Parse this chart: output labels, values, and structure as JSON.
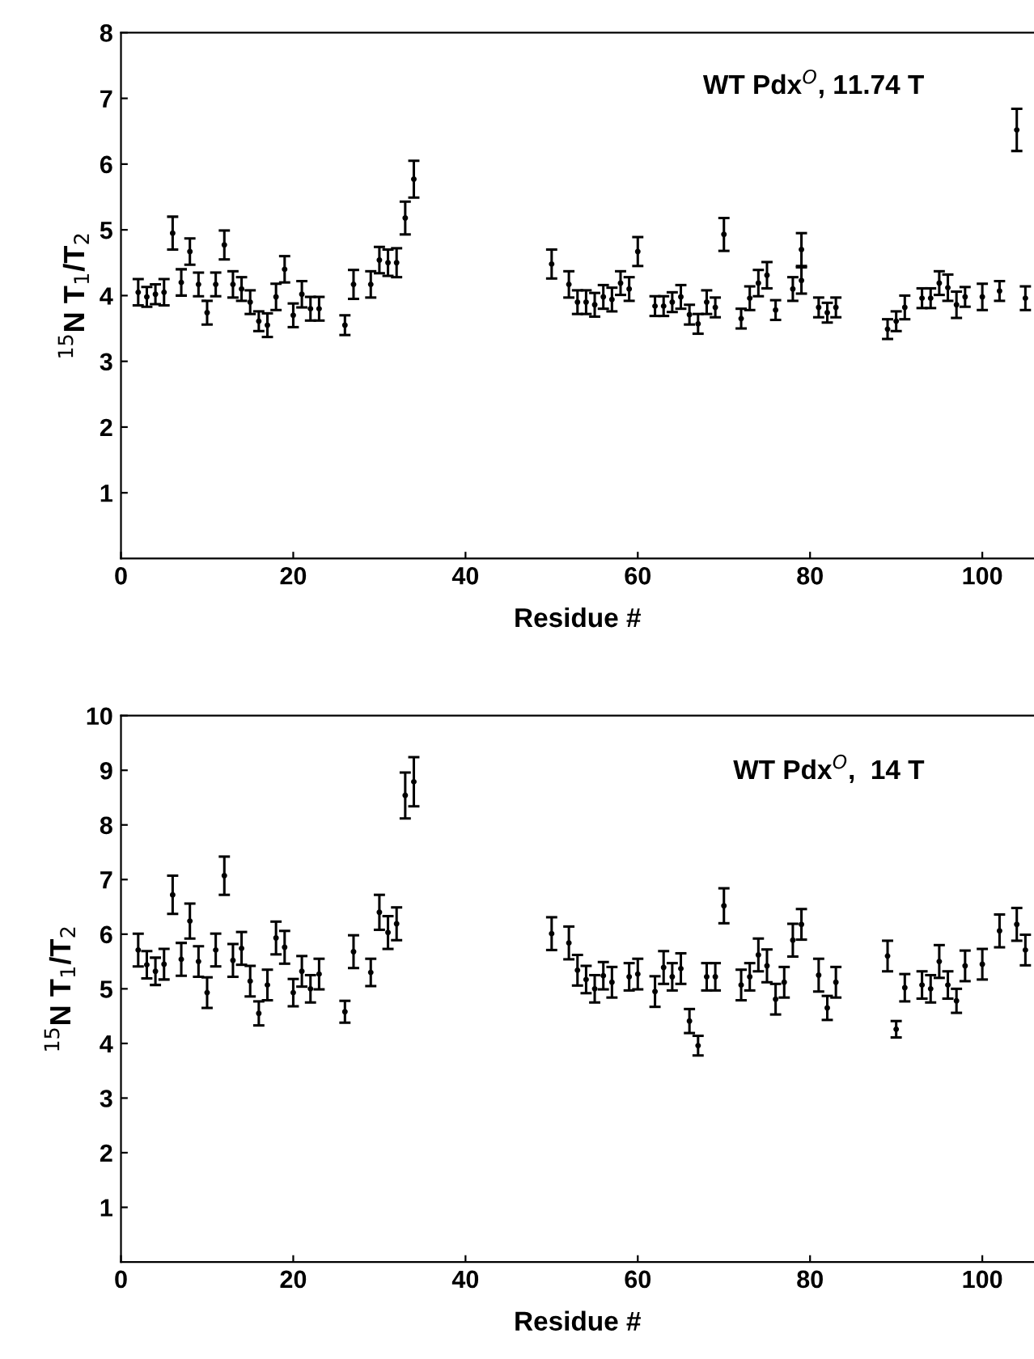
{
  "chart_data": [
    {
      "type": "scatter",
      "xlabel": "Residue #",
      "ylabel": "$^{15}$N T$_{1}$/T$_{2}$",
      "annotations": [
        "WT Pdx$^{O}$, 11.74 T"
      ],
      "xlim": [
        0,
        106
      ],
      "xticks": [
        0,
        20,
        40,
        60,
        80,
        100
      ],
      "ylim": [
        0,
        8
      ],
      "yticks": [
        1,
        2,
        3,
        4,
        5,
        6,
        7,
        8
      ],
      "marker": "circle",
      "grid": false,
      "series": [
        {
          "color": "#000000",
          "x": [
            2,
            3,
            4,
            5,
            6,
            7,
            8,
            9,
            10,
            11,
            12,
            13,
            14,
            15,
            16,
            17,
            18,
            19,
            20,
            21,
            22,
            23,
            26,
            27,
            29,
            30,
            31,
            32,
            33,
            34,
            50,
            52,
            53,
            54,
            55,
            56,
            57,
            58,
            59,
            60,
            62,
            63,
            64,
            65,
            66,
            67,
            68,
            69,
            70,
            72,
            73,
            74,
            75,
            76,
            78,
            79,
            79,
            81,
            82,
            83,
            89,
            90,
            91,
            93,
            94,
            95,
            96,
            97,
            98,
            100,
            102,
            104,
            105
          ],
          "values": [
            4.05,
            3.98,
            4.02,
            4.05,
            4.95,
            4.2,
            4.67,
            4.17,
            3.74,
            4.17,
            4.77,
            4.17,
            4.1,
            3.9,
            3.61,
            3.55,
            3.98,
            4.4,
            3.7,
            4.02,
            3.8,
            3.8,
            3.55,
            4.17,
            4.17,
            4.54,
            4.5,
            4.5,
            5.18,
            5.77,
            4.48,
            4.17,
            3.9,
            3.9,
            3.86,
            3.98,
            3.94,
            4.19,
            4.1,
            4.67,
            3.84,
            3.84,
            3.9,
            3.98,
            3.71,
            3.57,
            3.9,
            3.82,
            4.93,
            3.65,
            3.96,
            4.19,
            4.31,
            3.78,
            4.1,
            4.23,
            4.7,
            3.82,
            3.74,
            3.82,
            3.49,
            3.61,
            3.82,
            3.96,
            3.96,
            4.19,
            4.12,
            3.86,
            3.98,
            3.98,
            4.07,
            6.52,
            3.96
          ],
          "errors": [
            0.2,
            0.15,
            0.15,
            0.2,
            0.25,
            0.2,
            0.2,
            0.18,
            0.18,
            0.18,
            0.22,
            0.2,
            0.18,
            0.18,
            0.15,
            0.18,
            0.2,
            0.2,
            0.18,
            0.2,
            0.18,
            0.18,
            0.15,
            0.22,
            0.2,
            0.2,
            0.2,
            0.22,
            0.25,
            0.28,
            0.22,
            0.2,
            0.18,
            0.18,
            0.18,
            0.18,
            0.18,
            0.18,
            0.18,
            0.22,
            0.15,
            0.15,
            0.15,
            0.18,
            0.15,
            0.15,
            0.18,
            0.15,
            0.25,
            0.15,
            0.18,
            0.2,
            0.2,
            0.15,
            0.18,
            0.2,
            0.25,
            0.15,
            0.15,
            0.15,
            0.15,
            0.15,
            0.18,
            0.15,
            0.15,
            0.18,
            0.2,
            0.2,
            0.15,
            0.2,
            0.15,
            0.32,
            0.18
          ]
        }
      ]
    },
    {
      "type": "scatter",
      "xlabel": "Residue #",
      "ylabel": "$^{15}$N T$_{1}$/T$_{2}$",
      "annotations": [
        "WT Pdx$^{O}$,  14 T"
      ],
      "xlim": [
        0,
        106
      ],
      "xticks": [
        0,
        20,
        40,
        60,
        80,
        100
      ],
      "ylim": [
        0,
        10
      ],
      "yticks": [
        1,
        2,
        3,
        4,
        5,
        6,
        7,
        8,
        9,
        10
      ],
      "marker": "circle",
      "grid": false,
      "series": [
        {
          "color": "#000000",
          "x": [
            2,
            3,
            4,
            5,
            6,
            7,
            8,
            9,
            10,
            11,
            12,
            13,
            14,
            15,
            16,
            17,
            18,
            19,
            20,
            21,
            22,
            23,
            26,
            27,
            29,
            30,
            31,
            32,
            33,
            34,
            50,
            52,
            53,
            54,
            55,
            56,
            57,
            59,
            60,
            62,
            63,
            64,
            65,
            66,
            67,
            68,
            69,
            70,
            72,
            73,
            74,
            75,
            76,
            77,
            78,
            79,
            81,
            82,
            83,
            89,
            90,
            91,
            93,
            94,
            95,
            96,
            97,
            98,
            100,
            102,
            104,
            105
          ],
          "values": [
            5.71,
            5.44,
            5.32,
            5.45,
            6.72,
            5.54,
            6.24,
            5.5,
            4.93,
            5.71,
            7.07,
            5.52,
            5.74,
            5.14,
            4.55,
            5.07,
            5.93,
            5.76,
            4.93,
            5.32,
            5.0,
            5.27,
            4.58,
            5.68,
            5.3,
            6.4,
            6.03,
            6.19,
            8.54,
            8.79,
            6.01,
            5.84,
            5.34,
            5.17,
            5.0,
            5.24,
            5.12,
            5.22,
            5.27,
            4.95,
            5.39,
            5.22,
            5.37,
            4.41,
            3.96,
            5.22,
            5.22,
            6.52,
            5.07,
            5.22,
            5.62,
            5.42,
            4.81,
            5.12,
            5.89,
            6.18,
            5.25,
            4.65,
            5.12,
            5.6,
            4.26,
            5.02,
            5.07,
            5.0,
            5.5,
            5.07,
            4.78,
            5.42,
            5.45,
            6.06,
            6.18,
            5.71
          ],
          "errors": [
            0.3,
            0.25,
            0.25,
            0.28,
            0.35,
            0.3,
            0.32,
            0.28,
            0.28,
            0.3,
            0.35,
            0.3,
            0.3,
            0.28,
            0.22,
            0.28,
            0.3,
            0.3,
            0.25,
            0.28,
            0.25,
            0.28,
            0.2,
            0.3,
            0.25,
            0.32,
            0.3,
            0.3,
            0.42,
            0.45,
            0.3,
            0.3,
            0.28,
            0.25,
            0.25,
            0.25,
            0.28,
            0.25,
            0.28,
            0.28,
            0.3,
            0.25,
            0.28,
            0.22,
            0.18,
            0.25,
            0.25,
            0.32,
            0.28,
            0.25,
            0.3,
            0.3,
            0.28,
            0.28,
            0.3,
            0.28,
            0.3,
            0.22,
            0.28,
            0.28,
            0.15,
            0.25,
            0.25,
            0.25,
            0.3,
            0.25,
            0.22,
            0.28,
            0.28,
            0.3,
            0.3,
            0.28
          ]
        }
      ]
    }
  ]
}
